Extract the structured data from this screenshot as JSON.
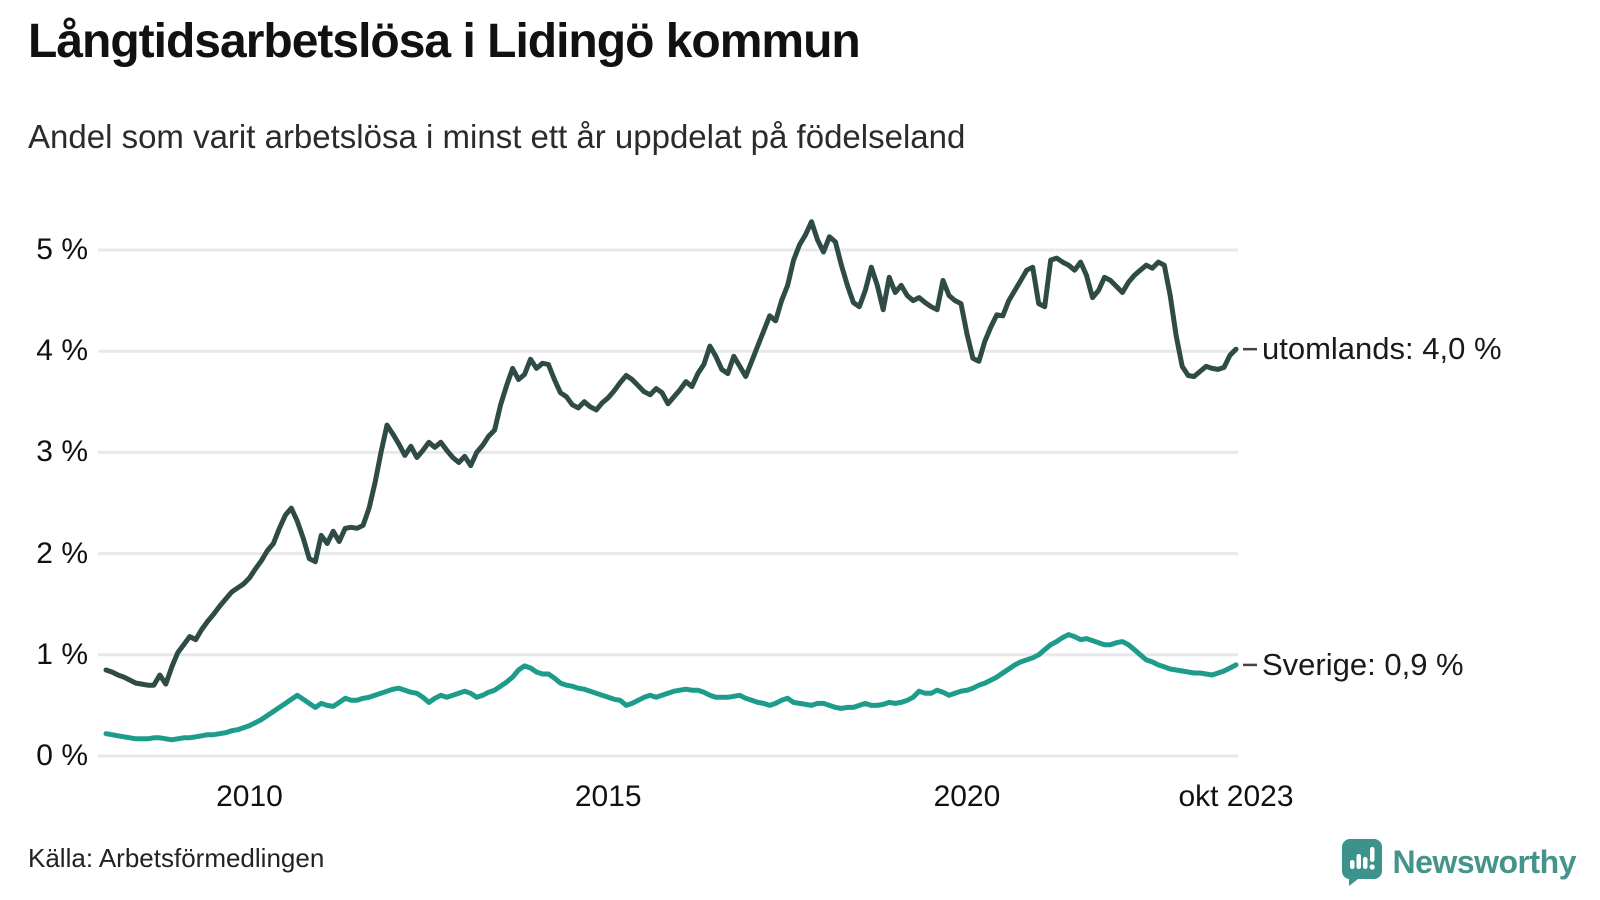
{
  "header": {
    "title": "Långtidsarbetslösa i Lidingö kommun",
    "subtitle": "Andel som varit arbetslösa i minst ett år uppdelat på födelseland"
  },
  "footer": {
    "source": "Källa: Arbetsförmedlingen",
    "brand": "Newsworthy"
  },
  "colors": {
    "utomlands_line": "#2e4b45",
    "sverige_line": "#1e9c8b",
    "gridline": "#e8e8ec",
    "text": "#111111",
    "brand_teal": "#44948c",
    "end_label_dash": "#444444"
  },
  "chart_data": {
    "type": "line",
    "title": "Långtidsarbetslösa i Lidingö kommun",
    "subtitle": "Andel som varit arbetslösa i minst ett år uppdelat på födelseland",
    "x_unit": "month",
    "x_start": "2008-01",
    "x_end": "2023-10",
    "ylim": [
      0,
      5.5
    ],
    "grid": true,
    "legend_position": "line-end-labels",
    "y_ticks": [
      {
        "value": 0,
        "label": "0 %"
      },
      {
        "value": 1,
        "label": "1 %"
      },
      {
        "value": 2,
        "label": "2 %"
      },
      {
        "value": 3,
        "label": "3 %"
      },
      {
        "value": 4,
        "label": "4 %"
      },
      {
        "value": 5,
        "label": "5 %"
      }
    ],
    "x_ticks": [
      {
        "month_index": 24,
        "label": "2010"
      },
      {
        "month_index": 84,
        "label": "2015"
      },
      {
        "month_index": 144,
        "label": "2020"
      },
      {
        "month_index": 189,
        "label": "okt 2023"
      }
    ],
    "series": [
      {
        "key": "utomlands",
        "name": "utomlands",
        "color": "#2e4b45",
        "end_label": "utomlands: 4,0 %",
        "last_value_label": "4,0 %",
        "values": [
          0.85,
          0.83,
          0.8,
          0.78,
          0.75,
          0.72,
          0.71,
          0.7,
          0.7,
          0.8,
          0.71,
          0.88,
          1.02,
          1.1,
          1.18,
          1.15,
          1.25,
          1.33,
          1.4,
          1.48,
          1.55,
          1.62,
          1.66,
          1.7,
          1.76,
          1.85,
          1.93,
          2.03,
          2.1,
          2.25,
          2.38,
          2.45,
          2.32,
          2.15,
          1.95,
          1.92,
          2.18,
          2.1,
          2.22,
          2.12,
          2.25,
          2.26,
          2.25,
          2.28,
          2.45,
          2.7,
          3.0,
          3.27,
          3.18,
          3.08,
          2.97,
          3.06,
          2.95,
          3.02,
          3.1,
          3.05,
          3.1,
          3.02,
          2.95,
          2.9,
          2.96,
          2.87,
          3.0,
          3.07,
          3.16,
          3.22,
          3.47,
          3.66,
          3.83,
          3.72,
          3.77,
          3.92,
          3.83,
          3.88,
          3.87,
          3.72,
          3.59,
          3.55,
          3.47,
          3.44,
          3.5,
          3.45,
          3.42,
          3.49,
          3.54,
          3.61,
          3.69,
          3.76,
          3.72,
          3.66,
          3.6,
          3.57,
          3.63,
          3.59,
          3.48,
          3.55,
          3.62,
          3.7,
          3.65,
          3.78,
          3.87,
          4.05,
          3.95,
          3.82,
          3.78,
          3.95,
          3.85,
          3.75,
          3.9,
          4.05,
          4.2,
          4.35,
          4.3,
          4.5,
          4.65,
          4.9,
          5.05,
          5.15,
          5.28,
          5.1,
          4.98,
          5.13,
          5.08,
          4.85,
          4.65,
          4.48,
          4.44,
          4.6,
          4.83,
          4.65,
          4.41,
          4.73,
          4.58,
          4.65,
          4.55,
          4.5,
          4.53,
          4.48,
          4.44,
          4.41,
          4.7,
          4.55,
          4.5,
          4.47,
          4.17,
          3.93,
          3.9,
          4.1,
          4.24,
          4.36,
          4.35,
          4.5,
          4.6,
          4.7,
          4.8,
          4.83,
          4.47,
          4.44,
          4.9,
          4.92,
          4.88,
          4.85,
          4.8,
          4.88,
          4.75,
          4.53,
          4.6,
          4.73,
          4.7,
          4.64,
          4.58,
          4.68,
          4.75,
          4.8,
          4.85,
          4.82,
          4.88,
          4.85,
          4.55,
          4.15,
          3.85,
          3.76,
          3.75,
          3.8,
          3.85,
          3.83,
          3.82,
          3.84,
          3.96,
          4.02
        ]
      },
      {
        "key": "sverige",
        "name": "Sverige",
        "color": "#1e9c8b",
        "end_label": "Sverige: 0,9 %",
        "last_value_label": "0,9 %",
        "values": [
          0.22,
          0.21,
          0.2,
          0.19,
          0.18,
          0.17,
          0.17,
          0.17,
          0.18,
          0.18,
          0.17,
          0.16,
          0.17,
          0.18,
          0.18,
          0.19,
          0.2,
          0.21,
          0.21,
          0.22,
          0.23,
          0.25,
          0.26,
          0.28,
          0.3,
          0.33,
          0.36,
          0.4,
          0.44,
          0.48,
          0.52,
          0.56,
          0.6,
          0.56,
          0.52,
          0.48,
          0.52,
          0.5,
          0.49,
          0.53,
          0.57,
          0.55,
          0.55,
          0.57,
          0.58,
          0.6,
          0.62,
          0.64,
          0.66,
          0.67,
          0.65,
          0.63,
          0.62,
          0.58,
          0.53,
          0.57,
          0.6,
          0.58,
          0.6,
          0.62,
          0.64,
          0.62,
          0.58,
          0.6,
          0.63,
          0.65,
          0.69,
          0.73,
          0.78,
          0.85,
          0.89,
          0.87,
          0.83,
          0.81,
          0.81,
          0.77,
          0.72,
          0.7,
          0.69,
          0.67,
          0.66,
          0.64,
          0.62,
          0.6,
          0.58,
          0.56,
          0.55,
          0.5,
          0.52,
          0.55,
          0.58,
          0.6,
          0.58,
          0.6,
          0.62,
          0.64,
          0.65,
          0.66,
          0.65,
          0.65,
          0.63,
          0.6,
          0.58,
          0.58,
          0.58,
          0.59,
          0.6,
          0.57,
          0.55,
          0.53,
          0.52,
          0.5,
          0.52,
          0.55,
          0.57,
          0.53,
          0.52,
          0.51,
          0.5,
          0.52,
          0.52,
          0.5,
          0.48,
          0.47,
          0.48,
          0.48,
          0.5,
          0.52,
          0.5,
          0.5,
          0.51,
          0.53,
          0.52,
          0.53,
          0.55,
          0.58,
          0.64,
          0.62,
          0.62,
          0.65,
          0.63,
          0.6,
          0.62,
          0.64,
          0.65,
          0.67,
          0.7,
          0.72,
          0.75,
          0.78,
          0.82,
          0.86,
          0.9,
          0.93,
          0.95,
          0.97,
          1.0,
          1.05,
          1.1,
          1.13,
          1.17,
          1.2,
          1.18,
          1.15,
          1.16,
          1.14,
          1.12,
          1.1,
          1.1,
          1.12,
          1.13,
          1.1,
          1.05,
          1.0,
          0.95,
          0.93,
          0.9,
          0.88,
          0.86,
          0.85,
          0.84,
          0.83,
          0.82,
          0.82,
          0.81,
          0.8,
          0.82,
          0.84,
          0.87,
          0.9
        ]
      }
    ]
  }
}
